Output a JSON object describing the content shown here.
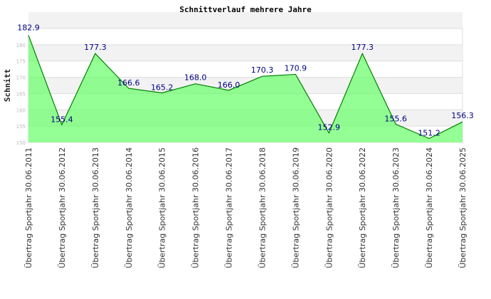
{
  "chart_data": {
    "type": "area",
    "title": "Schnittverlauf mehrere Jahre",
    "xlabel": "",
    "ylabel": "Schnitt",
    "ylim": [
      150,
      185
    ],
    "yticks": [
      150,
      155,
      160,
      165,
      170,
      175,
      180
    ],
    "grid": true,
    "categories": [
      "Übertrag Sportjahr 30.06.2011",
      "Übertrag Sportjahr 30.06.2012",
      "Übertrag Sportjahr 30.06.2013",
      "Übertrag Sportjahr 30.06.2014",
      "Übertrag Sportjahr 30.06.2015",
      "Übertrag Sportjahr 30.06.2016",
      "Übertrag Sportjahr 30.06.2017",
      "Übertrag Sportjahr 30.06.2018",
      "Übertrag Sportjahr 30.06.2019",
      "Übertrag Sportjahr 30.06.2020",
      "Übertrag Sportjahr 30.06.2022",
      "Übertrag Sportjahr 30.06.2023",
      "Übertrag Sportjahr 30.06.2024",
      "Übertrag Sportjahr 30.06.2025"
    ],
    "values": [
      182.9,
      155.4,
      177.3,
      166.6,
      165.2,
      168.0,
      166.0,
      170.3,
      170.9,
      152.9,
      177.3,
      155.6,
      151.2,
      156.3
    ],
    "labels": [
      "182.9",
      "155.4",
      "177.3",
      "166.6",
      "165.2",
      "168.0",
      "166.0",
      "170.3",
      "170.9",
      "152.9",
      "177.3",
      "155.6",
      "151.2",
      "156.3"
    ],
    "colors": {
      "fill": "#66ff66",
      "line": "#008000",
      "label": "#000080",
      "band": "#f2f2f2"
    }
  }
}
